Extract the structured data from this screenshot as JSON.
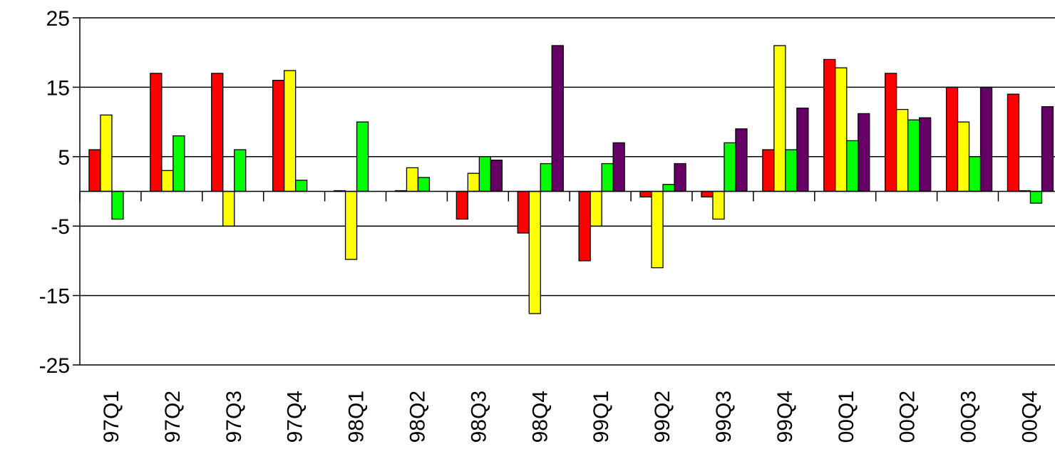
{
  "chart_data": {
    "type": "bar",
    "title": "",
    "xlabel": "",
    "ylabel": "",
    "ylim": [
      -25,
      25
    ],
    "yticks": [
      "25",
      "15",
      "5",
      "-5",
      "-15",
      "-25"
    ],
    "grid": true,
    "legend": "none",
    "categories": [
      "97Q1",
      "97Q2",
      "97Q3",
      "97Q4",
      "98Q1",
      "98Q2",
      "98Q3",
      "98Q4",
      "99Q1",
      "99Q2",
      "99Q3",
      "99Q4",
      "00Q1",
      "00Q2",
      "00Q3",
      "00Q4"
    ],
    "series": [
      {
        "color": "#ff0000",
        "values": [
          6,
          17,
          17,
          16,
          0.1,
          0.1,
          -4,
          -6,
          -10,
          -0.8,
          -0.8,
          6,
          19,
          17,
          15,
          14
        ]
      },
      {
        "color": "#ffff00",
        "values": [
          11,
          3,
          -5,
          17.4,
          -9.8,
          3.4,
          2.6,
          -17.6,
          -5,
          -11,
          -4,
          21,
          17.8,
          11.8,
          10,
          0.1
        ]
      },
      {
        "color": "#00ff00",
        "values": [
          -4,
          8,
          6,
          1.6,
          10,
          2,
          5,
          4,
          4,
          1,
          7,
          6,
          7.3,
          10.3,
          5,
          -1.7
        ]
      },
      {
        "color": "#660066",
        "values": [
          0,
          0,
          0,
          0,
          0,
          0,
          4.5,
          21,
          7,
          4,
          9,
          12,
          11.2,
          10.6,
          15,
          12.2
        ]
      }
    ]
  }
}
